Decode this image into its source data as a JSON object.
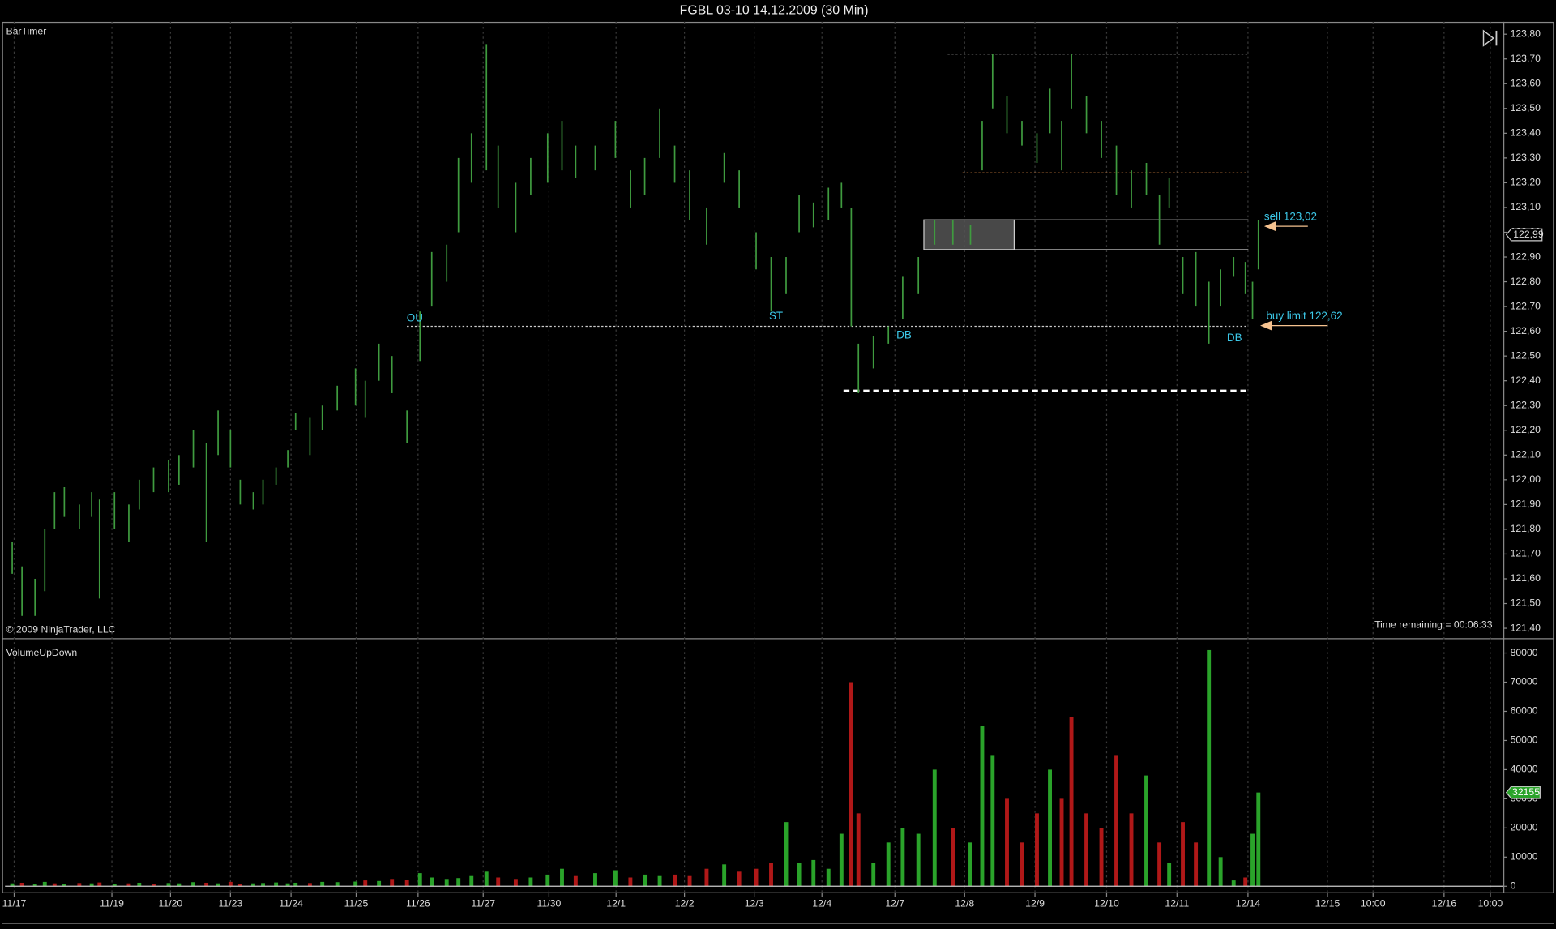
{
  "chart_data": [
    {
      "type": "range_bar",
      "title": "FGBL 03-10  14.12.2009 (30 Min)",
      "indicator_label": "BarTimer",
      "copyright": "© 2009 NinjaTrader, LLC",
      "time_remaining": "Time remaining = 00:06:33",
      "color": "#3f9b3f",
      "x": [
        0.11,
        0.26,
        0.46,
        0.61,
        0.76,
        0.91,
        1.14,
        1.33,
        1.45,
        1.68,
        1.9,
        2.06,
        2.28,
        2.51,
        2.67,
        2.89,
        3.09,
        3.27,
        3.46,
        3.61,
        3.81,
        3.96,
        4.16,
        4.34,
        4.46,
        4.68,
        4.87,
        5.1,
        5.38,
        5.53,
        5.74,
        5.94,
        6.17,
        6.37,
        6.55,
        6.78,
        6.96,
        7.16,
        7.39,
        7.57,
        7.84,
        8.07,
        8.33,
        8.55,
        8.76,
        9.06,
        9.37,
        9.6,
        9.82,
        10.05,
        10.28,
        10.51,
        10.77,
        11.04,
        11.27,
        11.53,
        11.76,
        11.99,
        12.19,
        12.41,
        12.64,
        12.84,
        12.99,
        13.1,
        13.33,
        13.56,
        13.78,
        14.02,
        14.27,
        14.55,
        14.82,
        15.0,
        15.16,
        15.38,
        15.61,
        15.84,
        16.04,
        16.22,
        16.37,
        16.6,
        16.83,
        17.06,
        17.29,
        17.52,
        17.72,
        17.87,
        18.08,
        18.28,
        18.48,
        18.66,
        18.86,
        19.04,
        19.15,
        19.24
      ],
      "high": [
        121.75,
        121.65,
        121.6,
        121.8,
        121.95,
        121.97,
        121.9,
        121.95,
        121.92,
        121.95,
        121.9,
        122.0,
        122.05,
        122.08,
        122.1,
        122.2,
        122.15,
        122.28,
        122.2,
        122.0,
        121.95,
        122.0,
        122.05,
        122.12,
        122.27,
        122.25,
        122.3,
        122.38,
        122.45,
        122.4,
        122.55,
        122.5,
        122.28,
        122.68,
        122.92,
        122.95,
        123.3,
        123.4,
        123.76,
        123.35,
        123.2,
        123.3,
        123.4,
        123.45,
        123.35,
        123.35,
        123.45,
        123.25,
        123.3,
        123.5,
        123.35,
        123.25,
        123.1,
        123.32,
        123.25,
        123.0,
        122.9,
        122.9,
        123.15,
        123.12,
        123.18,
        123.2,
        123.1,
        122.55,
        122.58,
        122.62,
        122.82,
        122.9,
        123.05,
        123.05,
        123.03,
        123.45,
        123.72,
        123.55,
        123.45,
        123.4,
        123.58,
        123.45,
        123.72,
        123.55,
        123.45,
        123.35,
        123.25,
        123.28,
        123.15,
        123.22,
        122.9,
        122.92,
        122.8,
        122.85,
        122.9,
        122.88,
        122.8,
        123.05
      ],
      "low": [
        121.62,
        121.45,
        121.45,
        121.55,
        121.8,
        121.85,
        121.8,
        121.85,
        121.52,
        121.8,
        121.75,
        121.88,
        121.95,
        121.95,
        121.98,
        122.05,
        121.75,
        122.1,
        122.05,
        121.9,
        121.88,
        121.9,
        121.98,
        122.05,
        122.2,
        122.1,
        122.2,
        122.28,
        122.3,
        122.25,
        122.4,
        122.35,
        122.15,
        122.48,
        122.7,
        122.8,
        123.0,
        123.2,
        123.25,
        123.1,
        123.0,
        123.15,
        123.2,
        123.25,
        123.22,
        123.25,
        123.3,
        123.1,
        123.15,
        123.3,
        123.2,
        123.05,
        122.95,
        123.2,
        123.1,
        122.85,
        122.68,
        122.75,
        123.0,
        123.02,
        123.05,
        123.1,
        122.62,
        122.35,
        122.45,
        122.55,
        122.65,
        122.75,
        122.95,
        122.95,
        122.95,
        123.25,
        123.5,
        123.4,
        123.35,
        123.28,
        123.4,
        123.25,
        123.5,
        123.4,
        123.3,
        123.15,
        123.1,
        123.15,
        122.95,
        123.1,
        122.75,
        122.7,
        122.55,
        122.7,
        122.82,
        122.75,
        122.65,
        122.85
      ],
      "ylim": [
        121.36,
        123.85
      ],
      "yticks": [
        {
          "value": 121.4,
          "label": "121,40"
        },
        {
          "value": 121.5,
          "label": "121,50"
        },
        {
          "value": 121.6,
          "label": "121,60"
        },
        {
          "value": 121.7,
          "label": "121,70"
        },
        {
          "value": 121.8,
          "label": "121,80"
        },
        {
          "value": 121.9,
          "label": "121,90"
        },
        {
          "value": 122.0,
          "label": "122,00"
        },
        {
          "value": 122.1,
          "label": "122,10"
        },
        {
          "value": 122.2,
          "label": "122,20"
        },
        {
          "value": 122.3,
          "label": "122,30"
        },
        {
          "value": 122.4,
          "label": "122,40"
        },
        {
          "value": 122.5,
          "label": "122,50"
        },
        {
          "value": 122.6,
          "label": "122,60"
        },
        {
          "value": 122.7,
          "label": "122,70"
        },
        {
          "value": 122.8,
          "label": "122,80"
        },
        {
          "value": 122.9,
          "label": "122,90"
        },
        {
          "value": 123.0,
          "label": "123,00"
        },
        {
          "value": 123.1,
          "label": "123,10"
        },
        {
          "value": 123.2,
          "label": "123,20"
        },
        {
          "value": 123.3,
          "label": "123,30"
        },
        {
          "value": 123.4,
          "label": "123,40"
        },
        {
          "value": 123.5,
          "label": "123,50"
        },
        {
          "value": 123.6,
          "label": "123,60"
        },
        {
          "value": 123.7,
          "label": "123,70"
        },
        {
          "value": 123.8,
          "label": "123,80"
        }
      ],
      "last_price": {
        "value": 122.99,
        "label": "122,99"
      },
      "levels": [
        {
          "value": 122.62,
          "color": "#cccccc",
          "dash": "2,2",
          "width": 1
        },
        {
          "value": 122.36,
          "color": "#ffffff",
          "dash": "6,4",
          "width": 2
        },
        {
          "value": 123.72,
          "color": "#cccccc",
          "dash": "2,2",
          "width": 1
        },
        {
          "value": 123.24,
          "color": "#c87a3c",
          "dash": "2,2",
          "width": 1
        },
        {
          "value": 123.05,
          "color": "#aaaaaa",
          "dash": "none",
          "width": 1
        },
        {
          "value": 122.93,
          "color": "#aaaaaa",
          "dash": "none",
          "width": 1
        }
      ],
      "annotations": [
        "OU",
        "ST",
        "DB",
        "DB",
        "sell 123,02",
        "buy limit 122,62"
      ]
    },
    {
      "type": "bar",
      "title": "VolumeUpDown",
      "x_ref": 0,
      "values": [
        1000,
        1200,
        800,
        1500,
        1000,
        900,
        1100,
        1000,
        1300,
        900,
        1000,
        1200,
        900,
        1100,
        1000,
        1400,
        1200,
        1000,
        1500,
        900,
        1000,
        1100,
        1300,
        1000,
        1200,
        1100,
        1500,
        1400,
        1600,
        2000,
        1800,
        2500,
        2200,
        4500,
        3000,
        2500,
        2800,
        3500,
        5000,
        3000,
        2500,
        3000,
        4000,
        6000,
        3500,
        4500,
        5500,
        3000,
        4000,
        3500,
        4000,
        3500,
        6000,
        7500,
        5000,
        6000,
        8000,
        22000,
        8000,
        9000,
        6000,
        18000,
        70000,
        25000,
        8000,
        15000,
        20000,
        18000,
        40000,
        20000,
        15000,
        55000,
        45000,
        30000,
        15000,
        25000,
        40000,
        30000,
        58000,
        25000,
        20000,
        45000,
        25000,
        38000,
        15000,
        8000,
        22000,
        15000,
        81000,
        10000,
        2000,
        3000,
        18000,
        32155
      ],
      "colors": [
        "#2aa32a",
        "#b01818",
        "#2aa32a",
        "#2aa32a",
        "#b01818",
        "#2aa32a",
        "#b01818",
        "#2aa32a",
        "#b01818",
        "#2aa32a",
        "#b01818",
        "#2aa32a",
        "#b01818",
        "#2aa32a",
        "#2aa32a",
        "#2aa32a",
        "#b01818",
        "#2aa32a",
        "#b01818",
        "#b01818",
        "#2aa32a",
        "#2aa32a",
        "#2aa32a",
        "#2aa32a",
        "#2aa32a",
        "#b01818",
        "#2aa32a",
        "#2aa32a",
        "#2aa32a",
        "#b01818",
        "#2aa32a",
        "#b01818",
        "#b01818",
        "#2aa32a",
        "#2aa32a",
        "#2aa32a",
        "#2aa32a",
        "#2aa32a",
        "#2aa32a",
        "#b01818",
        "#b01818",
        "#2aa32a",
        "#2aa32a",
        "#2aa32a",
        "#b01818",
        "#2aa32a",
        "#2aa32a",
        "#b01818",
        "#2aa32a",
        "#2aa32a",
        "#b01818",
        "#b01818",
        "#b01818",
        "#2aa32a",
        "#b01818",
        "#b01818",
        "#b01818",
        "#2aa32a",
        "#2aa32a",
        "#2aa32a",
        "#2aa32a",
        "#2aa32a",
        "#b01818",
        "#b01818",
        "#2aa32a",
        "#2aa32a",
        "#2aa32a",
        "#2aa32a",
        "#2aa32a",
        "#b01818",
        "#2aa32a",
        "#2aa32a",
        "#2aa32a",
        "#b01818",
        "#b01818",
        "#b01818",
        "#2aa32a",
        "#b01818",
        "#b01818",
        "#b01818",
        "#b01818",
        "#b01818",
        "#b01818",
        "#2aa32a",
        "#b01818",
        "#2aa32a",
        "#b01818",
        "#b01818",
        "#2aa32a",
        "#2aa32a",
        "#2aa32a",
        "#b01818",
        "#2aa32a",
        "#2aa32a"
      ],
      "ylim": [
        -2400,
        84400
      ],
      "yticks": [
        0,
        10000,
        20000,
        30000,
        40000,
        50000,
        60000,
        70000,
        80000
      ],
      "xlim": [
        0,
        23
      ],
      "xticks": [
        {
          "value": 0.14,
          "label": "11/17"
        },
        {
          "value": 1.64,
          "label": "11/19"
        },
        {
          "value": 2.54,
          "label": "11/20"
        },
        {
          "value": 3.46,
          "label": "11/23"
        },
        {
          "value": 4.39,
          "label": "11/24"
        },
        {
          "value": 5.39,
          "label": "11/25"
        },
        {
          "value": 6.34,
          "label": "11/26"
        },
        {
          "value": 7.34,
          "label": "11/27"
        },
        {
          "value": 8.35,
          "label": "11/30"
        },
        {
          "value": 9.38,
          "label": "12/1"
        },
        {
          "value": 10.43,
          "label": "12/2"
        },
        {
          "value": 11.5,
          "label": "12/3"
        },
        {
          "value": 12.54,
          "label": "12/4"
        },
        {
          "value": 13.66,
          "label": "12/7"
        },
        {
          "value": 14.73,
          "label": "12/8"
        },
        {
          "value": 15.81,
          "label": "12/9"
        },
        {
          "value": 16.91,
          "label": "12/10"
        },
        {
          "value": 17.99,
          "label": "12/11"
        },
        {
          "value": 19.08,
          "label": "12/14"
        },
        {
          "value": 20.3,
          "label": "12/15"
        },
        {
          "value": 21.0,
          "label": "10:00"
        },
        {
          "value": 22.09,
          "label": "12/16"
        },
        {
          "value": 22.8,
          "label": "10:00"
        }
      ]
    }
  ]
}
